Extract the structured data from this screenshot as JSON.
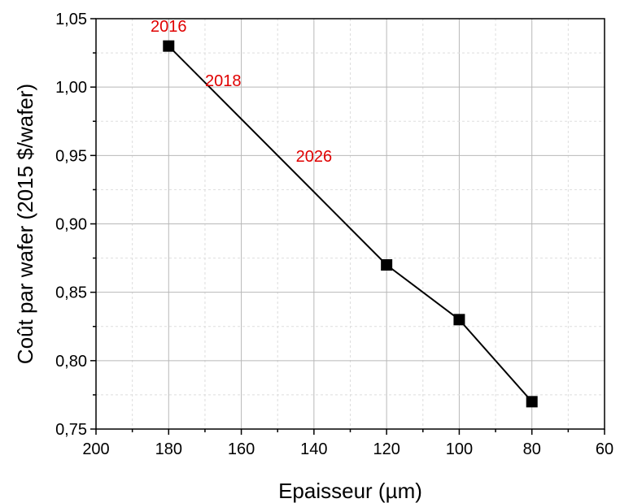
{
  "chart_data": {
    "type": "line",
    "title": "",
    "xlabel": "Epaisseur (µm)",
    "ylabel": "Coût par wafer (2015 $/wafer)",
    "x_reversed": true,
    "xlim": [
      200,
      60
    ],
    "ylim": [
      0.75,
      1.05
    ],
    "x_ticks": [
      200,
      180,
      160,
      140,
      120,
      100,
      80,
      60
    ],
    "x_tick_labels": [
      "200",
      "180",
      "160",
      "140",
      "120",
      "100",
      "80",
      "60"
    ],
    "y_ticks": [
      0.75,
      0.8,
      0.85,
      0.9,
      0.95,
      1.0,
      1.05
    ],
    "y_tick_labels": [
      "0,75",
      "0,80",
      "0,85",
      "0,90",
      "0,95",
      "1,00",
      "1,05"
    ],
    "grid": true,
    "series": [
      {
        "marker": "square",
        "color": "#000000",
        "x": [
          180,
          120,
          100,
          80
        ],
        "y": [
          1.03,
          0.87,
          0.83,
          0.77
        ]
      }
    ],
    "annotations": [
      {
        "text": "2016",
        "x": 180,
        "y": 1.04,
        "color": "#e00000"
      },
      {
        "text": "2018",
        "x": 165,
        "y": 1.0,
        "color": "#e00000"
      },
      {
        "text": "2026",
        "x": 140,
        "y": 0.945,
        "color": "#e00000"
      }
    ]
  }
}
